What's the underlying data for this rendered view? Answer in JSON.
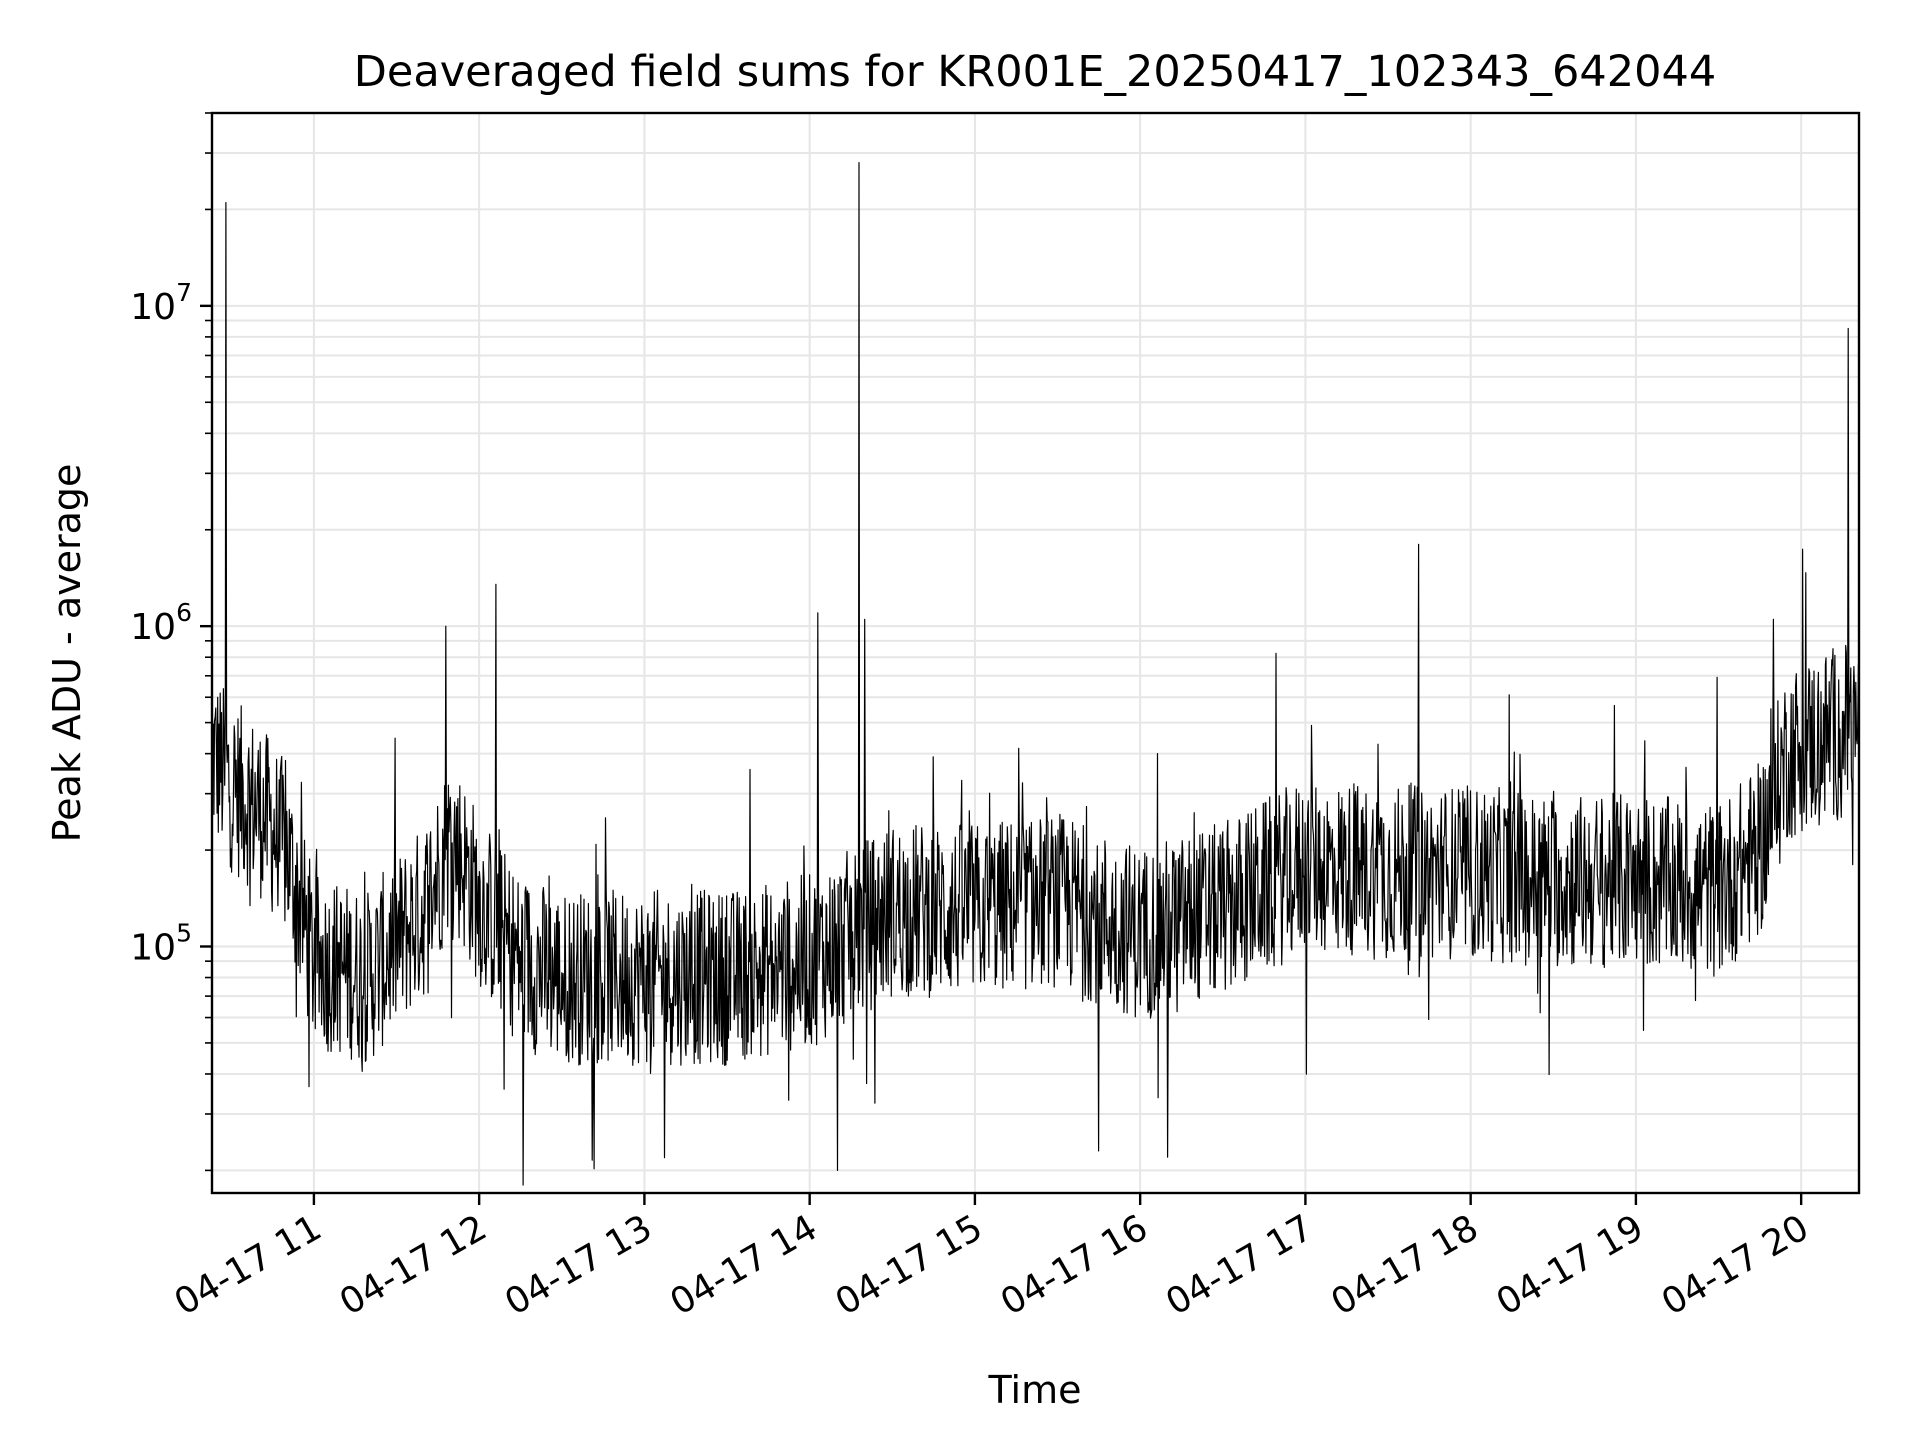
{
  "chart_data": {
    "type": "line",
    "title": "Deaveraged field sums for KR001E_20250417_102343_642044",
    "xlabel": "Time",
    "ylabel": "Peak ADU - average",
    "xlim": [
      "2025-04-17 10:23",
      "2025-04-17 20:21"
    ],
    "ylim": [
      17000,
      40000000
    ],
    "y_scale": "log",
    "grid": "major and minor",
    "x_tick_labels": [
      "04-17 11",
      "04-17 12",
      "04-17 13",
      "04-17 14",
      "04-17 15",
      "04-17 16",
      "04-17 17",
      "04-17 18",
      "04-17 19",
      "04-17 20"
    ],
    "x_tick_times": [
      "2025-04-17 11:00",
      "2025-04-17 12:00",
      "2025-04-17 13:00",
      "2025-04-17 14:00",
      "2025-04-17 15:00",
      "2025-04-17 16:00",
      "2025-04-17 17:00",
      "2025-04-17 18:00",
      "2025-04-17 19:00",
      "2025-04-17 20:00"
    ],
    "y_tick_labels": [
      {
        "base": "10",
        "exp": "5",
        "value": 100000
      },
      {
        "base": "10",
        "exp": "6",
        "value": 1000000
      },
      {
        "base": "10",
        "exp": "7",
        "value": 10000000
      }
    ],
    "line_color": "#000000",
    "grid_color": "#e6e6e6",
    "series": [
      {
        "points": [
          [
            "2025-04-17 10:23",
            400000
          ],
          [
            "2025-04-17 10:30",
            320000
          ],
          [
            "2025-04-17 10:40",
            270000
          ],
          [
            "2025-04-17 10:50",
            200000
          ],
          [
            "2025-04-17 11:00",
            90000
          ],
          [
            "2025-04-17 11:20",
            80000
          ],
          [
            "2025-04-17 11:40",
            130000
          ],
          [
            "2025-04-17 11:50",
            220000
          ],
          [
            "2025-04-17 12:00",
            140000
          ],
          [
            "2025-04-17 12:15",
            90000
          ],
          [
            "2025-04-17 12:30",
            80000
          ],
          [
            "2025-04-17 13:00",
            80000
          ],
          [
            "2025-04-17 13:30",
            80000
          ],
          [
            "2025-04-17 14:00",
            90000
          ],
          [
            "2025-04-17 14:30",
            130000
          ],
          [
            "2025-04-17 15:00",
            130000
          ],
          [
            "2025-04-17 15:30",
            140000
          ],
          [
            "2025-04-17 16:00",
            110000
          ],
          [
            "2025-04-17 16:30",
            130000
          ],
          [
            "2025-04-17 17:00",
            180000
          ],
          [
            "2025-04-17 17:30",
            170000
          ],
          [
            "2025-04-17 18:00",
            170000
          ],
          [
            "2025-04-17 18:30",
            160000
          ],
          [
            "2025-04-17 19:00",
            160000
          ],
          [
            "2025-04-17 19:30",
            150000
          ],
          [
            "2025-04-17 19:45",
            200000
          ],
          [
            "2025-04-17 19:55",
            400000
          ],
          [
            "2025-04-17 20:10",
            460000
          ],
          [
            "2025-04-17 20:21",
            480000
          ]
        ]
      }
    ],
    "spikes": [
      [
        "2025-04-17 10:28",
        21000000
      ],
      [
        "2025-04-17 11:48",
        1000000
      ],
      [
        "2025-04-17 12:06",
        1350000
      ],
      [
        "2025-04-17 12:16",
        18000
      ],
      [
        "2025-04-17 14:03",
        1100000
      ],
      [
        "2025-04-17 14:10",
        20000
      ],
      [
        "2025-04-17 14:18",
        28000000
      ],
      [
        "2025-04-17 14:20",
        1050000
      ],
      [
        "2025-04-17 15:45",
        23000
      ],
      [
        "2025-04-17 16:10",
        22000
      ],
      [
        "2025-04-17 17:41",
        1800000
      ],
      [
        "2025-04-17 19:50",
        1050000
      ],
      [
        "2025-04-17 20:17",
        8500000
      ]
    ]
  }
}
